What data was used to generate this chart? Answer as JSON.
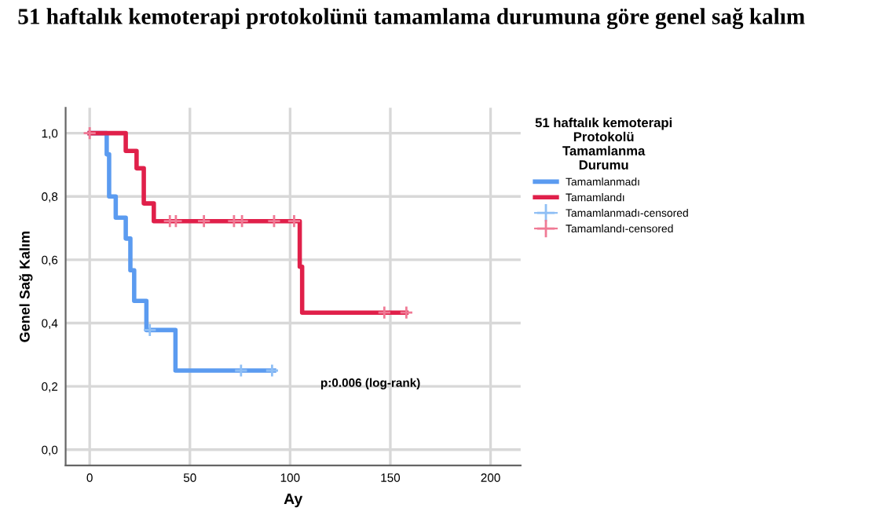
{
  "chart_data": {
    "type": "step",
    "title": "51 haftalık kemoterapi protokolünü tamamlama durumuna göre genel sağ kalım",
    "xlabel": "Ay",
    "ylabel": "Genel Sağ Kalım",
    "legend_title": "51 haftalık kemoterapi\nProtokolü\nTamamlanma\nDurumu",
    "series": [
      {
        "name": "Tamamlanmadı",
        "color": "#5b9bf0",
        "x": [
          0,
          8.5,
          9.7,
          13,
          18,
          20.3,
          22.2,
          28.3,
          42.8,
          92
        ],
        "values": [
          1.0,
          0.933,
          0.8,
          0.733,
          0.667,
          0.567,
          0.47,
          0.378,
          0.25,
          0.25
        ]
      },
      {
        "name": "Tamamlandı",
        "color": "#e0204a",
        "x": [
          0,
          18,
          23.4,
          27,
          32,
          104.8,
          106,
          158
        ],
        "values": [
          1.0,
          0.944,
          0.889,
          0.778,
          0.722,
          0.578,
          0.433,
          0.433
        ]
      },
      {
        "name": "Tamamlanmadı-censored",
        "type": "scatter",
        "marker": "cross",
        "color": "#8fbff5",
        "x": [
          30,
          75.5,
          91
        ],
        "values": [
          0.378,
          0.25,
          0.25
        ]
      },
      {
        "name": "Tamamlandı-censored",
        "type": "scatter",
        "marker": "cross",
        "color": "#f07a95",
        "x": [
          0,
          40,
          43,
          57,
          72,
          76,
          92,
          102,
          147,
          158
        ],
        "values": [
          1.0,
          0.722,
          0.722,
          0.722,
          0.722,
          0.722,
          0.722,
          0.722,
          0.433,
          0.433
        ]
      }
    ],
    "xlim": [
      -12,
      215
    ],
    "ylim": [
      -0.05,
      1.08
    ],
    "xticks": [
      0,
      50,
      100,
      150,
      200
    ],
    "yticks": [
      {
        "value": 0,
        "label": "0,0"
      },
      {
        "value": 0.2,
        "label": "0,2"
      },
      {
        "value": 0.4,
        "label": "0,4"
      },
      {
        "value": 0.6,
        "label": "0,6"
      },
      {
        "value": 0.8,
        "label": "0,8"
      },
      {
        "value": 1.0,
        "label": "1,0"
      }
    ],
    "grid": true,
    "legend": "right",
    "annotations": [
      "p:0.006 (log-rank)"
    ]
  }
}
